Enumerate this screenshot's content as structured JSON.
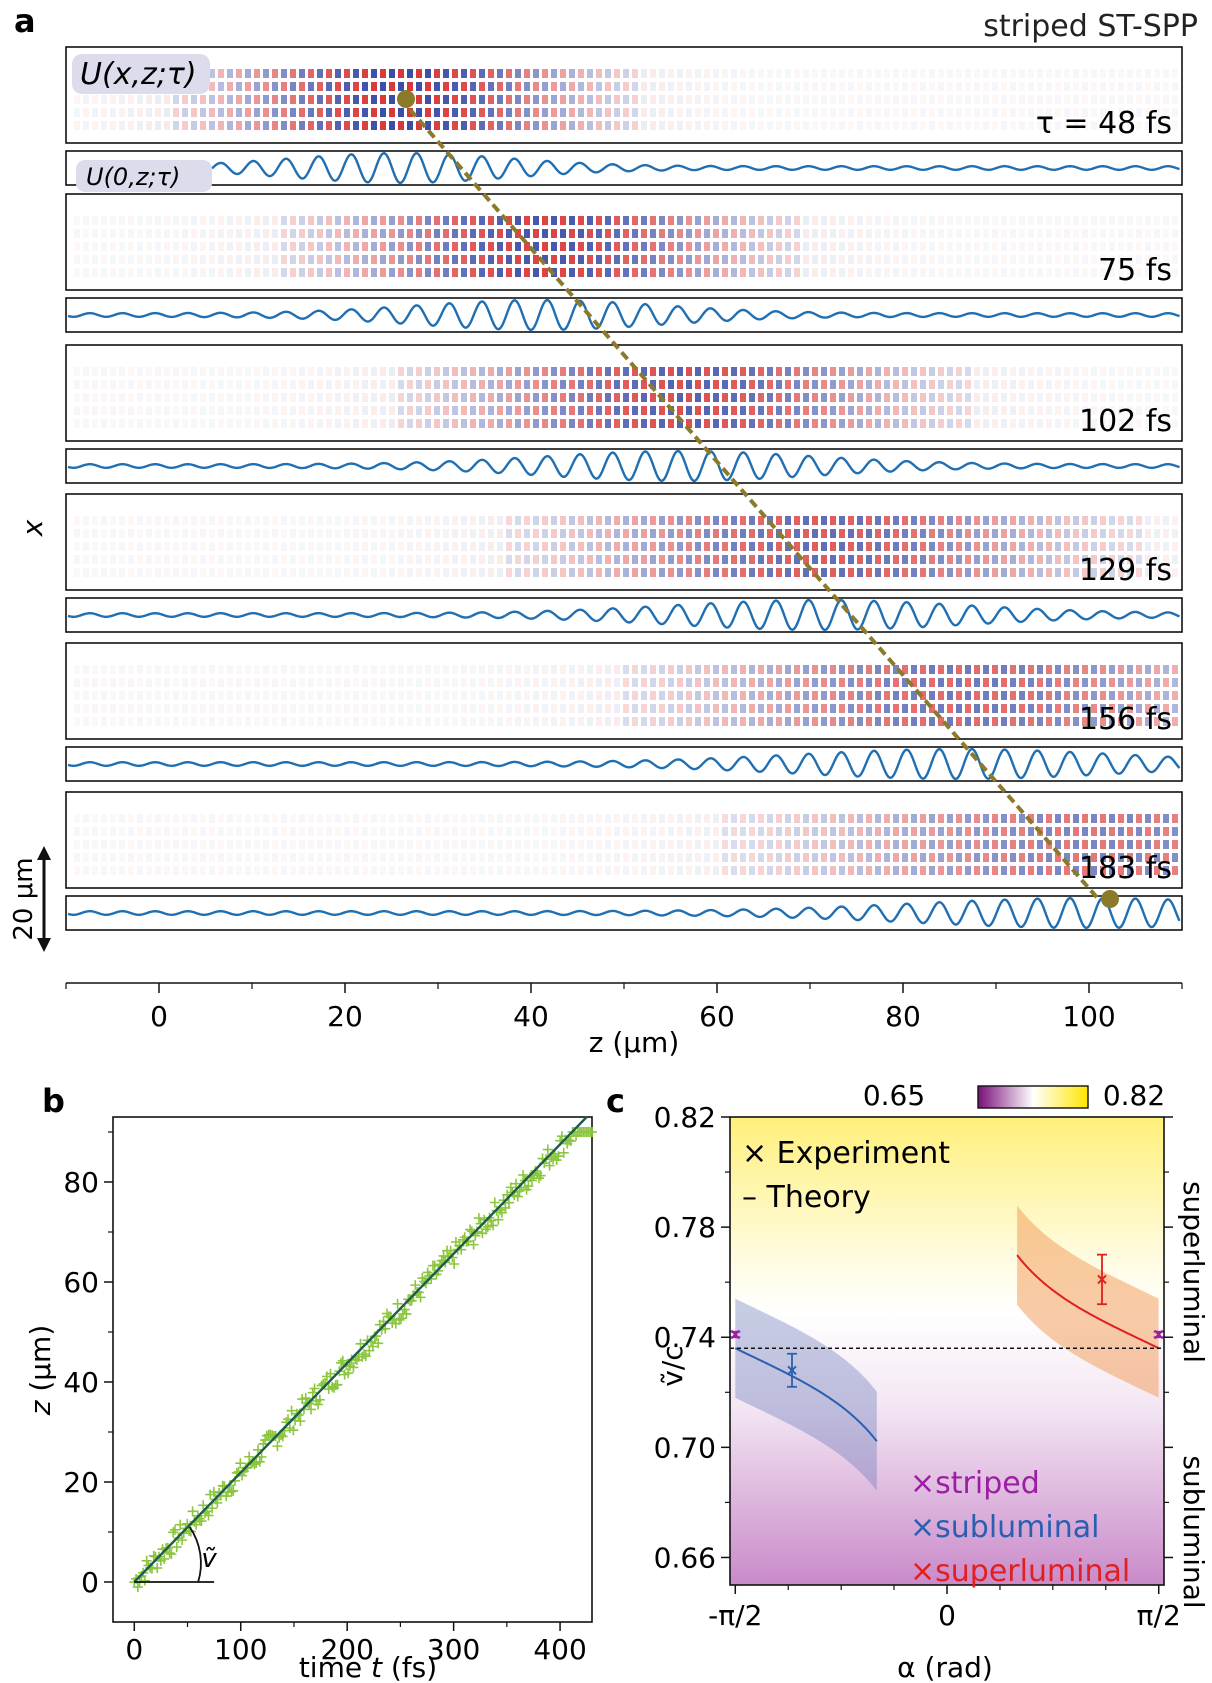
{
  "panel_a": {
    "letter": "a",
    "title": "striped ST-SPP",
    "field_label": "U(x,z;τ)",
    "line_label": "U(0,z;τ)",
    "tau_prefix": "τ = ",
    "frame_labels": [
      "48 fs",
      "75 fs",
      "102 fs",
      "129 fs",
      "156 fs",
      "183 fs"
    ],
    "y_axis_label": "x",
    "scale_bar_label": "20 μm",
    "x_axis_label": "z (μm)",
    "x_ticks": [
      "0",
      "20",
      "40",
      "60",
      "80",
      "100"
    ]
  },
  "panel_b": {
    "letter": "b",
    "x_axis_label_prefix": "time ",
    "x_axis_label_var": "t",
    "x_axis_label_suffix": " (fs)",
    "y_axis_label_var": "z",
    "y_axis_label_suffix": " (μm)",
    "angle_label": "ṽ",
    "x_ticks": [
      "0",
      "100",
      "200",
      "300",
      "400"
    ],
    "y_ticks": [
      "0",
      "20",
      "40",
      "60",
      "80"
    ]
  },
  "panel_c": {
    "letter": "c",
    "colorbar_min": "0.65",
    "colorbar_max": "0.82",
    "legend_experiment": "× Experiment",
    "legend_theory": "– Theory",
    "y_axis_label": "ṽ/c",
    "x_axis_label": "α (rad)",
    "x_ticks": [
      "-π/2",
      "0",
      "π/2"
    ],
    "y_ticks": [
      "0.82",
      "0.78",
      "0.74",
      "0.70",
      "0.66"
    ],
    "side_superluminal": "superluminal",
    "side_subluminal": "subluminal",
    "legend_striped": "×striped",
    "legend_subluminal": "×subluminal",
    "legend_superluminal": "×superluminal"
  },
  "colors": {
    "line_blue": "#1f6fb2",
    "trajectory": "#8a7a2a",
    "scatter_green": "#8cc63f",
    "fit_line": "#1d5c4a",
    "striped": "#9b1fa0",
    "subluminal": "#2a5fb0",
    "superluminal": "#e02020"
  },
  "chart_data": [
    {
      "type": "line",
      "title": "striped ST-SPP",
      "xlabel": "z (μm)",
      "ylabel": "x",
      "xlim": [
        -10,
        110
      ],
      "series": [
        {
          "name": "48 fs",
          "tau_fs": 48,
          "packet_center_um": 26
        },
        {
          "name": "75 fs",
          "tau_fs": 75,
          "packet_center_um": 41
        },
        {
          "name": "102 fs",
          "tau_fs": 102,
          "packet_center_um": 56
        },
        {
          "name": "129 fs",
          "tau_fs": 129,
          "packet_center_um": 71
        },
        {
          "name": "156 fs",
          "tau_fs": 156,
          "packet_center_um": 86
        },
        {
          "name": "183 fs",
          "tau_fs": 183,
          "packet_center_um": 100
        }
      ],
      "trajectory_endpoints_um": [
        26,
        101
      ]
    },
    {
      "type": "scatter",
      "xlabel": "time t (fs)",
      "ylabel": "z (μm)",
      "xlim": [
        -20,
        430
      ],
      "ylim": [
        -8,
        93
      ],
      "fit_line": {
        "x": [
          0,
          425
        ],
        "y": [
          0,
          93
        ]
      },
      "points_summary": {
        "x_range": [
          0,
          430
        ],
        "y_range": [
          0,
          90
        ],
        "approx_slope_um_per_fs": 0.218
      }
    },
    {
      "type": "line",
      "xlabel": "α (rad)",
      "ylabel": "ṽ/c",
      "ylim": [
        0.65,
        0.82
      ],
      "xlim": [
        -1.61,
        1.61
      ],
      "reference_line": 0.736,
      "series": [
        {
          "name": "striped",
          "points": [
            {
              "x": -1.5708,
              "y": 0.741,
              "err": 0.001
            },
            {
              "x": 1.5708,
              "y": 0.741,
              "err": 0.001
            }
          ]
        },
        {
          "name": "subluminal",
          "points": [
            {
              "x": -1.15,
              "y": 0.728,
              "err": 0.006
            }
          ]
        },
        {
          "name": "superluminal",
          "points": [
            {
              "x": 1.15,
              "y": 0.761,
              "err": 0.009
            }
          ]
        }
      ],
      "colorbar": {
        "min": 0.65,
        "max": 0.82
      }
    }
  ]
}
